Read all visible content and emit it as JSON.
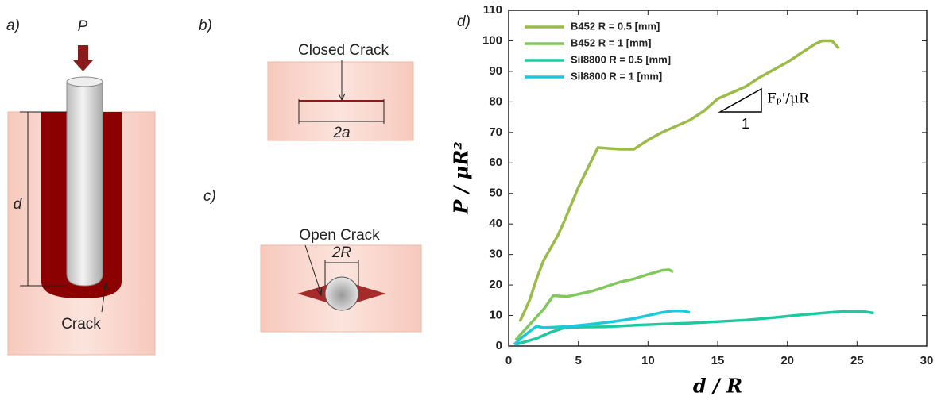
{
  "diagrams": {
    "a": {
      "label": "a)",
      "load": "P",
      "depth": "d",
      "crack": "Crack"
    },
    "b": {
      "label": "b)",
      "crack": "Closed Crack",
      "width": "2a"
    },
    "c": {
      "label": "c)",
      "crack": "Open Crack",
      "diameter": "2R"
    }
  },
  "chart_data": {
    "type": "line",
    "panel_label": "d)",
    "xlabel": "d / R",
    "ylabel": "P / μR²",
    "annotations": [
      "Fₚ'/μR",
      "1"
    ],
    "xlim": [
      0,
      30
    ],
    "xticks": [
      0,
      5,
      10,
      15,
      20,
      25,
      30
    ],
    "ylim": [
      0,
      110
    ],
    "yticks": [
      0,
      10,
      20,
      30,
      40,
      50,
      60,
      70,
      80,
      90,
      100,
      110
    ],
    "legend": "upper left",
    "series": [
      {
        "name": "B452 R = 0.5 [mm]",
        "color": "#9bbb48",
        "x": [
          0.8,
          1.5,
          2,
          2.5,
          3,
          3.5,
          4,
          5,
          6.4,
          8,
          9,
          10,
          11,
          13,
          14,
          15,
          17,
          18,
          20,
          21,
          22,
          22.5,
          23.2,
          23.7
        ],
        "values": [
          8,
          15,
          22,
          28,
          32,
          36,
          41,
          52,
          65,
          64.5,
          64.5,
          67.5,
          70,
          74,
          77,
          81,
          85,
          88,
          93,
          96,
          99,
          100,
          100,
          97.5
        ]
      },
      {
        "name": "B452 R = 1 [mm]",
        "color": "#7fc85a",
        "x": [
          0.5,
          1.5,
          2.5,
          3.2,
          4.2,
          5,
          6,
          7,
          8,
          9,
          10,
          11,
          11.5,
          11.8
        ],
        "values": [
          2,
          7,
          12,
          16.5,
          16.2,
          17,
          18,
          19.5,
          21,
          22,
          23.5,
          24.8,
          25,
          24.3
        ]
      },
      {
        "name": "Sil8800 R = 0.5 [mm]",
        "color": "#1fc8a0",
        "x": [
          0.5,
          2,
          3,
          4,
          5,
          7,
          9,
          11,
          13,
          15,
          17,
          19,
          21,
          23,
          24,
          25.5,
          26.2
        ],
        "values": [
          0.5,
          2.5,
          4.5,
          6,
          6.2,
          6.3,
          6.8,
          7.2,
          7.5,
          8,
          8.5,
          9.3,
          10.2,
          11,
          11.3,
          11.3,
          10.8
        ]
      },
      {
        "name": "Sil8800 R = 1 [mm]",
        "color": "#1cc8dc",
        "x": [
          0.4,
          1,
          2,
          2.5,
          3.5,
          4.5,
          6,
          7.5,
          9,
          10,
          11,
          11.8,
          12.5,
          13
        ],
        "values": [
          0.5,
          3,
          6.5,
          6,
          6.2,
          6.5,
          7.2,
          8,
          9,
          10,
          11,
          11.5,
          11.5,
          11
        ]
      }
    ]
  }
}
